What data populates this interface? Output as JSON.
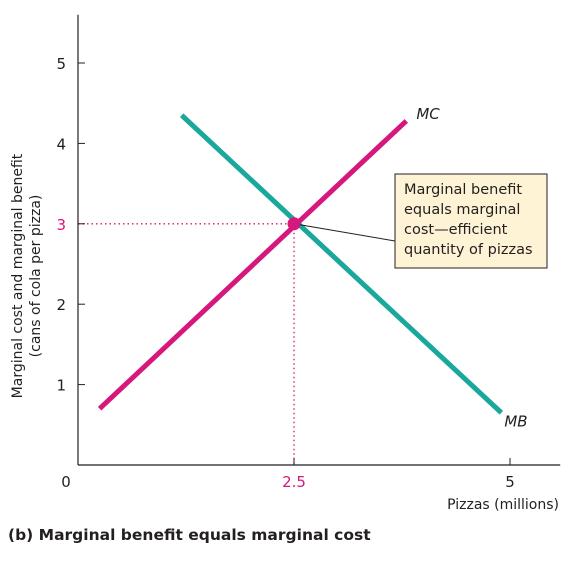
{
  "chart_data": {
    "type": "line",
    "caption": "(b) Marginal benefit equals marginal cost",
    "xlabel": "Pizzas (millions)",
    "ylabel_lines": [
      "Marginal cost and marginal benefit",
      "(cans of cola per pizza)"
    ],
    "xlim": [
      0,
      5.5
    ],
    "ylim": [
      0,
      5.5
    ],
    "x_ticks": [
      {
        "value": 0,
        "label": "0",
        "highlight": false
      },
      {
        "value": 2.5,
        "label": "2.5",
        "highlight": true
      },
      {
        "value": 5,
        "label": "5",
        "highlight": false
      }
    ],
    "y_ticks": [
      {
        "value": 1,
        "label": "1",
        "highlight": false
      },
      {
        "value": 2,
        "label": "2",
        "highlight": false
      },
      {
        "value": 3,
        "label": "3",
        "highlight": true
      },
      {
        "value": 4,
        "label": "4",
        "highlight": false
      },
      {
        "value": 5,
        "label": "5",
        "highlight": false
      }
    ],
    "series": [
      {
        "name": "MB",
        "color": "#1aa79c",
        "x": [
          1.2,
          4.9
        ],
        "y": [
          4.35,
          0.65
        ]
      },
      {
        "name": "MC",
        "color": "#d6177c",
        "x": [
          0.25,
          3.8
        ],
        "y": [
          0.7,
          4.28
        ]
      }
    ],
    "equilibrium": {
      "x": 2.5,
      "y": 3,
      "color": "#d6177c"
    },
    "annotation": {
      "lines": [
        "Marginal benefit",
        "equals marginal",
        "cost—efficient",
        "quantity of pizzas"
      ],
      "box_fill": "#fff3d6",
      "box_border": "#231f20"
    },
    "grid": false,
    "legend": "none"
  }
}
